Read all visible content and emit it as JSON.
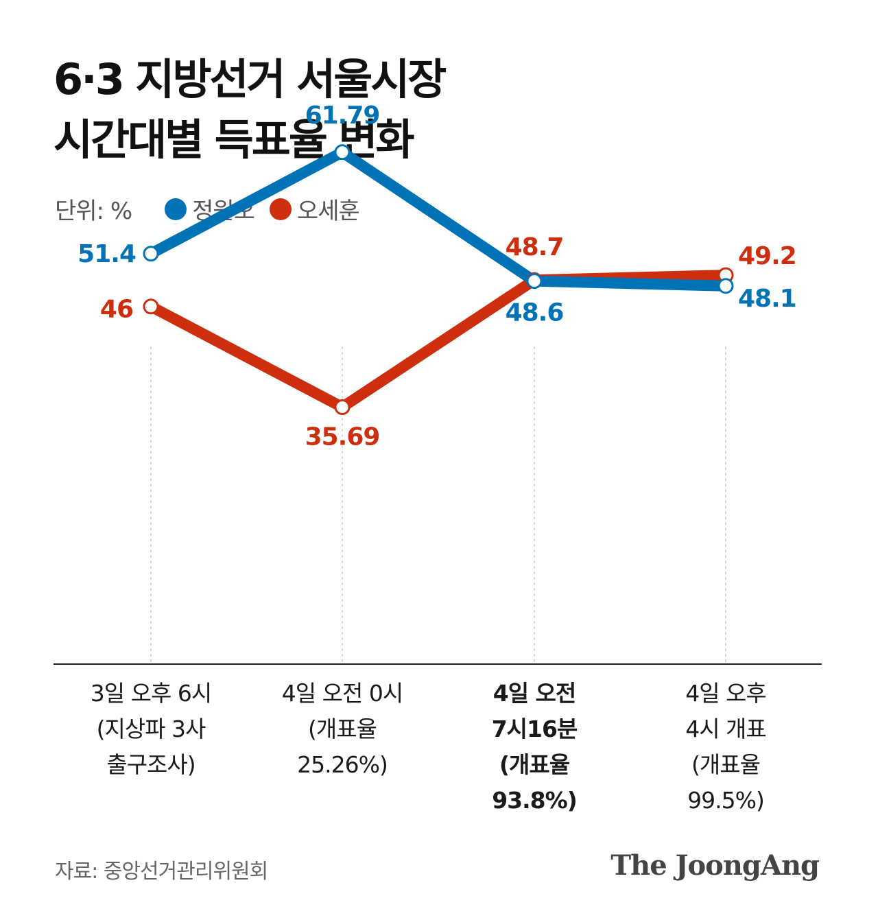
{
  "title": {
    "line1": "6·3 지방선거 서울시장",
    "line2": "시간대별 득표율 변화"
  },
  "legend": {
    "unit": "단위: %",
    "items": [
      {
        "name": "정원오",
        "color": "#0073b6"
      },
      {
        "name": "오세훈",
        "color": "#cc2e0e"
      }
    ]
  },
  "chart_data": {
    "type": "line",
    "categories": [
      [
        "3일 오후 6시",
        "(지상파 3사",
        "출구조사)"
      ],
      [
        "4일 오전 0시",
        "(개표율",
        "25.26%)"
      ],
      [
        "4일 오전",
        "7시16분",
        "(개표율",
        "93.8%)"
      ],
      [
        "4일 오후",
        "4시 개표",
        "(개표율",
        "99.5%)"
      ]
    ],
    "highlight_category": 2,
    "series": [
      {
        "name": "정원오",
        "color": "#0073b6",
        "values": [
          51.4,
          61.79,
          48.6,
          48.1
        ],
        "labels": [
          "51.4",
          "61.79",
          "48.6",
          "48.1"
        ]
      },
      {
        "name": "오세훈",
        "color": "#cc2e0e",
        "values": [
          46,
          35.69,
          48.7,
          49.2
        ],
        "labels": [
          "46",
          "35.69",
          "48.7",
          "49.2"
        ]
      }
    ],
    "ylim": [
      20,
      70
    ],
    "grid": "vertical dashed"
  },
  "footer": {
    "source": "자료: 중앙선거관리위원회",
    "logo": "The JoongAng"
  }
}
